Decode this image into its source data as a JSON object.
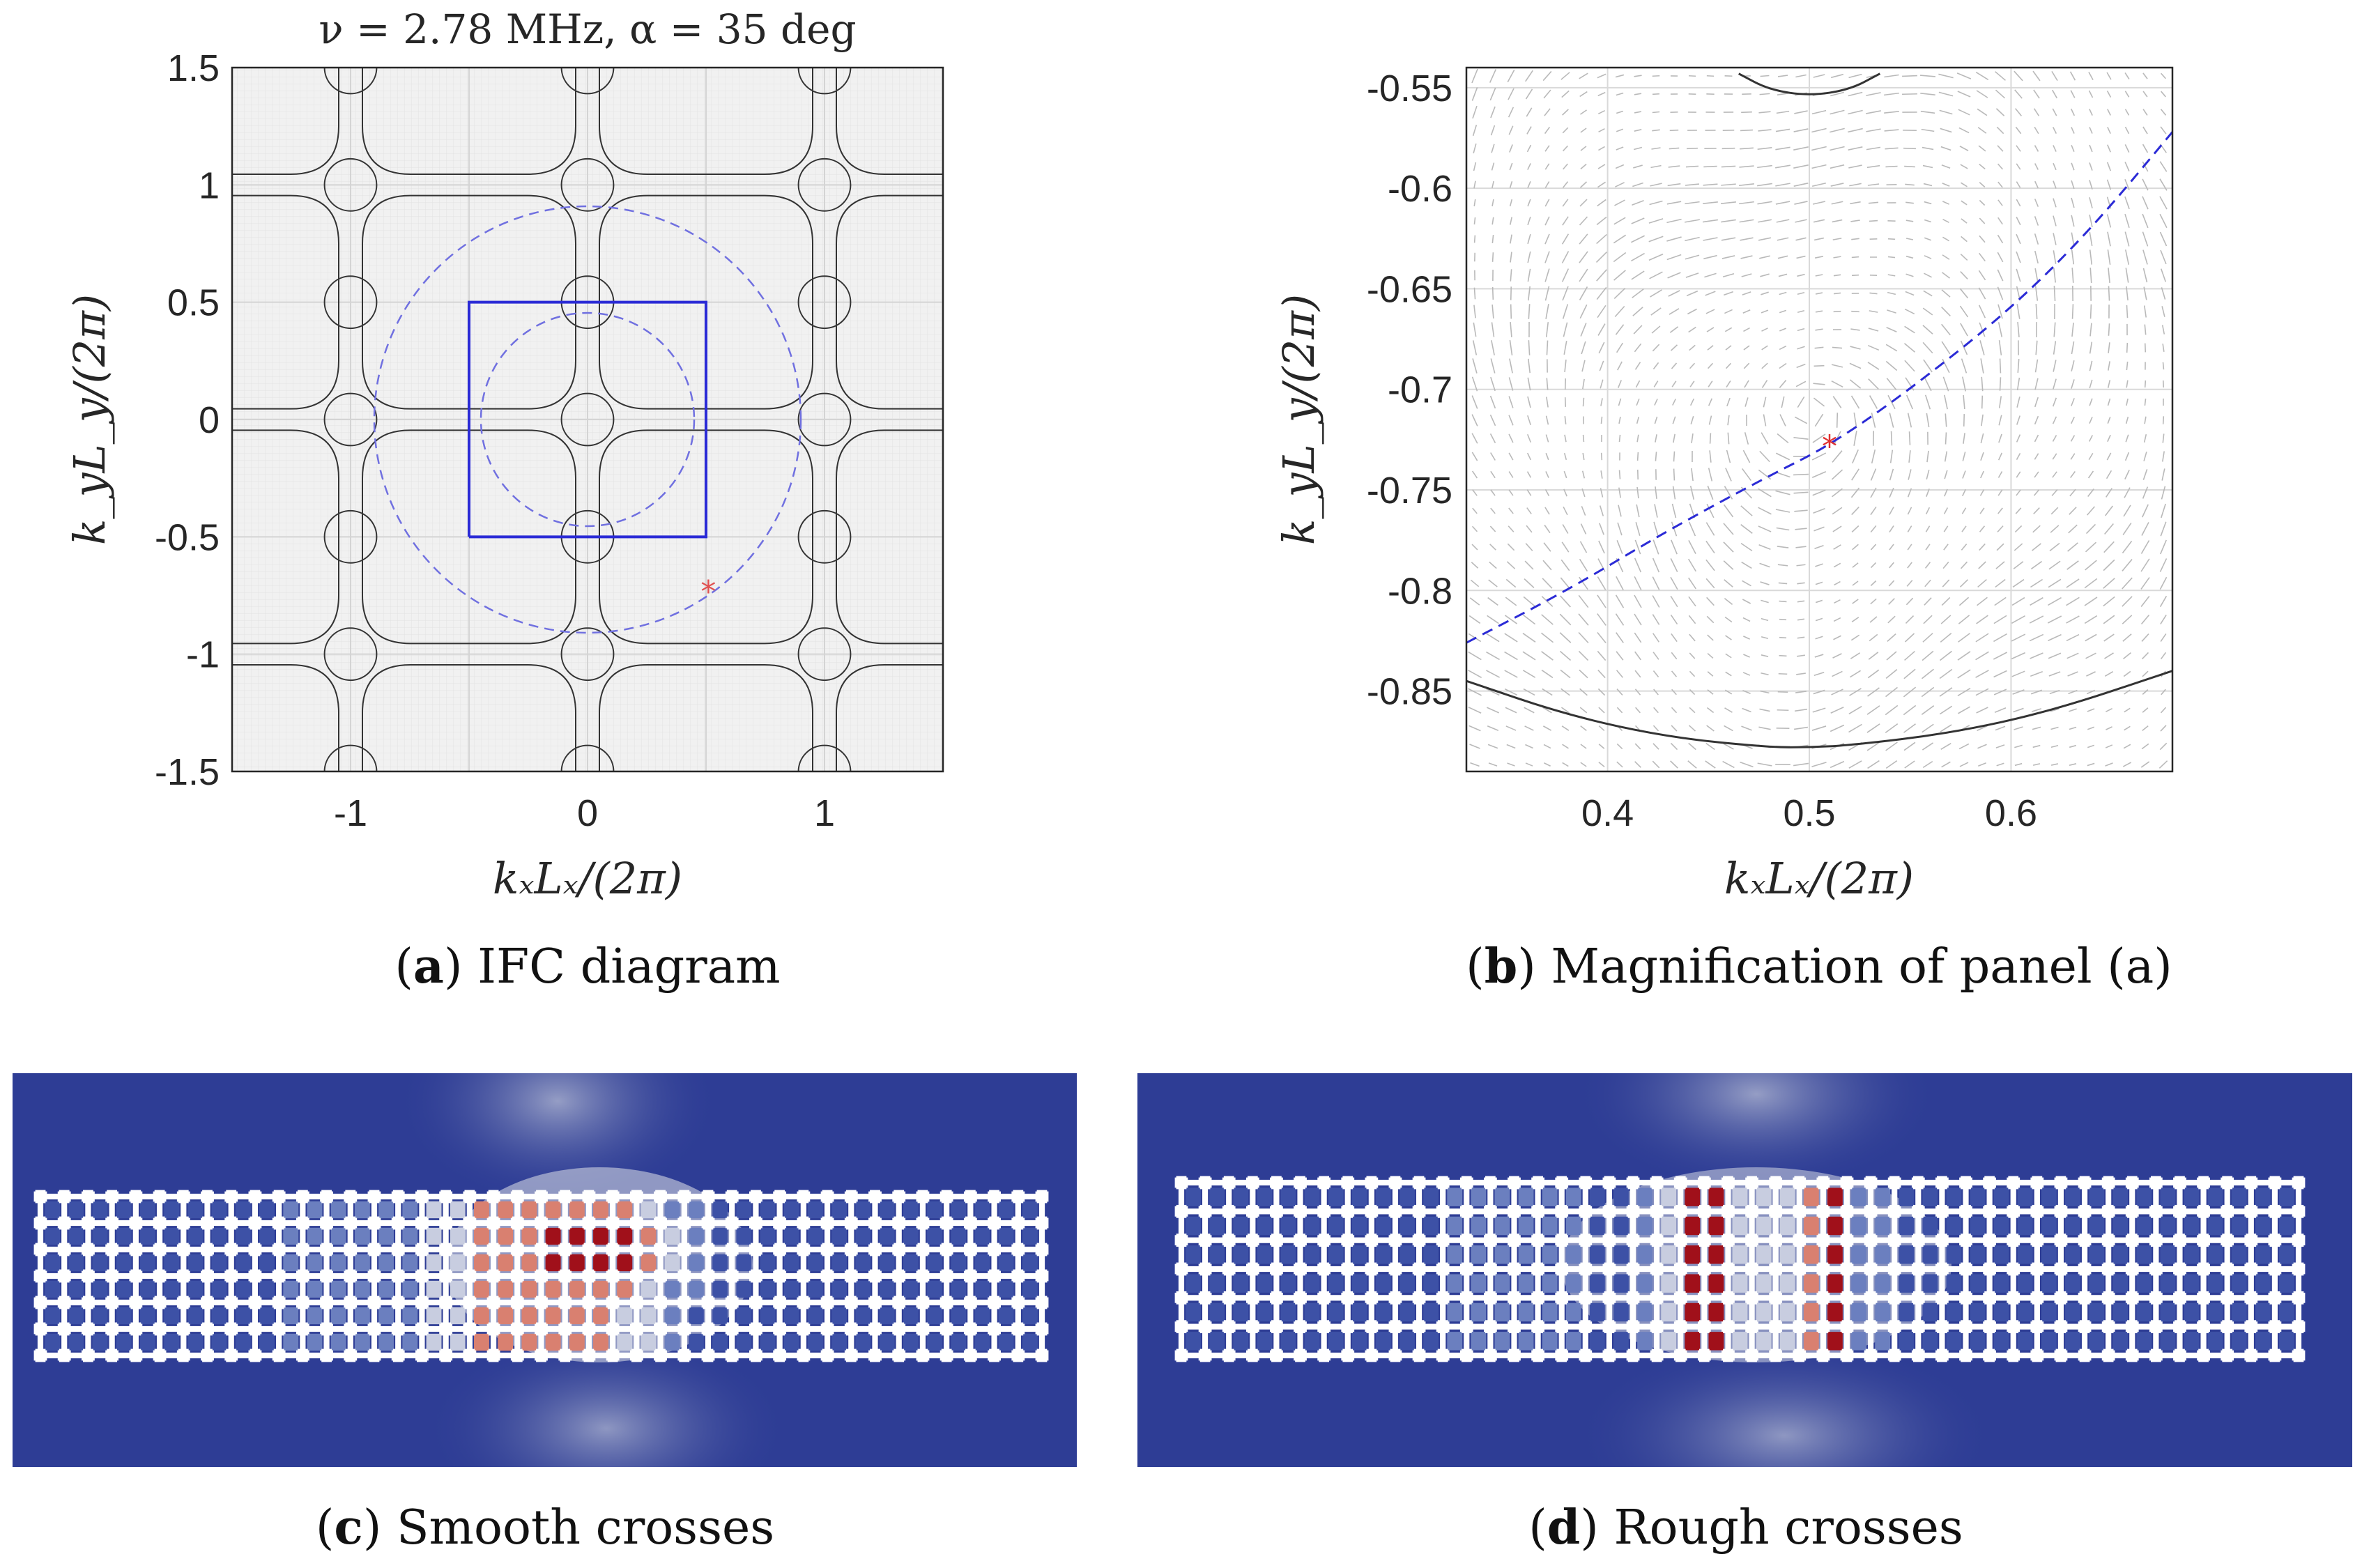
{
  "captions": {
    "a": {
      "letter": "a",
      "text": "IFC diagram"
    },
    "b": {
      "letter": "b",
      "text": "Magnification of panel (a)"
    },
    "c": {
      "letter": "c",
      "text": "Smooth crosses"
    },
    "d": {
      "letter": "d",
      "text": "Rough crosses"
    }
  },
  "chart_data": [
    {
      "type": "scatter",
      "panel": "a",
      "title": "ν = 2.78 MHz, α = 35 deg",
      "xlabel": "kₓLₓ/(2π)",
      "ylabel": "k_yL_y/(2π)",
      "xlim": [
        -1.5,
        1.5
      ],
      "ylim": [
        -1.5,
        1.5
      ],
      "xticks": [
        "-1",
        "0",
        "1"
      ],
      "yticks": [
        "-1.5",
        "-1",
        "-0.5",
        "0",
        "0.5",
        "1",
        "1.5"
      ],
      "grid": true,
      "brillouin_zone": {
        "x": [
          -0.5,
          0.5,
          0.5,
          -0.5,
          -0.5
        ],
        "y": [
          -0.5,
          -0.5,
          0.5,
          0.5,
          -0.5
        ],
        "color": "#2b2bd6"
      },
      "circles": [
        {
          "center": [
            0,
            0
          ],
          "radius": 0.9,
          "style": "dashed",
          "color": "#7070e0"
        },
        {
          "center": [
            0,
            0
          ],
          "radius": 0.45,
          "style": "dashed",
          "color": "#7070e0"
        }
      ],
      "marker": {
        "x": 0.51,
        "y": -0.73,
        "symbol": "*",
        "color": "#e05050"
      },
      "contour_small_circle_radius": 0.11,
      "contour_square_halfwidth": 0.45,
      "contour_color": "#333333"
    },
    {
      "type": "line",
      "panel": "b",
      "xlabel": "kₓLₓ/(2π)",
      "ylabel": "k_yL_y/(2π)",
      "xlim": [
        0.33,
        0.68
      ],
      "ylim": [
        -0.89,
        -0.54
      ],
      "xticks": [
        "0.4",
        "0.5",
        "0.6"
      ],
      "yticks": [
        "-0.55",
        "-0.6",
        "-0.65",
        "-0.7",
        "-0.75",
        "-0.8",
        "-0.85"
      ],
      "grid": true,
      "series": [
        {
          "style": "dashed",
          "color": "#2b2bd6",
          "x": [
            0.33,
            0.38,
            0.43,
            0.48,
            0.51,
            0.55,
            0.6,
            0.64,
            0.68
          ],
          "y": [
            -0.826,
            -0.8,
            -0.77,
            -0.743,
            -0.728,
            -0.7,
            -0.66,
            -0.62,
            -0.572
          ]
        },
        {
          "style": "solid",
          "color": "#333333",
          "x": [
            0.33,
            0.38,
            0.43,
            0.48,
            0.5,
            0.52,
            0.57,
            0.62,
            0.68
          ],
          "y": [
            -0.845,
            -0.862,
            -0.873,
            -0.878,
            -0.878,
            -0.877,
            -0.871,
            -0.86,
            -0.84
          ]
        },
        {
          "style": "solid",
          "color": "#333333",
          "x": [
            0.465,
            0.48,
            0.5,
            0.52,
            0.535
          ],
          "y": [
            -0.543,
            -0.551,
            -0.554,
            -0.551,
            -0.543
          ]
        }
      ],
      "marker": {
        "x": 0.51,
        "y": -0.728,
        "symbol": "*",
        "color": "#e03030"
      }
    },
    {
      "type": "heatmap",
      "panel": "c",
      "colormap": {
        "low": "#2e3d95",
        "mid": "#c8cde0",
        "high": "#a0101a"
      },
      "lattice": {
        "columns": 43,
        "rows": 7,
        "color": "#ffffff"
      },
      "hot_region": "middle-right of lattice"
    },
    {
      "type": "heatmap",
      "panel": "d",
      "colormap": {
        "low": "#2e3d95",
        "mid": "#c8cde0",
        "high": "#a0101a"
      },
      "lattice": {
        "columns": 48,
        "rows": 7,
        "color": "#ffffff"
      },
      "hot_region": "two vertical bands in middle of lattice"
    }
  ]
}
